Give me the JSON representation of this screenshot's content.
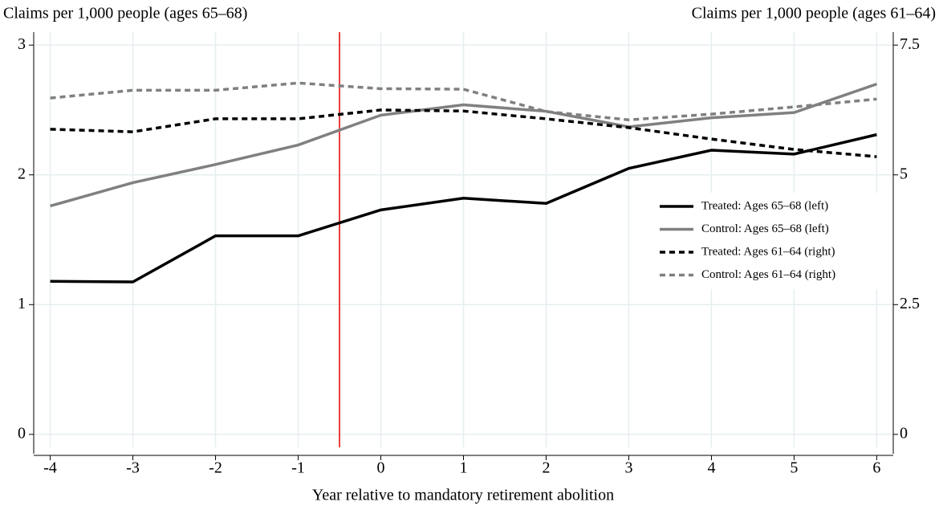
{
  "chart_data": {
    "type": "line",
    "y_label": "Claims per 1,000 people (ages 65–68)",
    "y2_label": "Claims per 1,000 people (ages 61–64)",
    "x_label": "Year relative to mandatory retirement abolition",
    "x": [
      -4,
      -3,
      -2,
      -1,
      0,
      1,
      2,
      3,
      4,
      5,
      6
    ],
    "series": [
      {
        "name": "Treated: Ages 65–68 (left)",
        "color": "#000000",
        "dash": false,
        "axis": "y",
        "values": [
          1.18,
          1.175,
          1.53,
          1.53,
          1.73,
          1.82,
          1.78,
          2.05,
          2.19,
          2.16,
          2.31
        ]
      },
      {
        "name": "Control: Ages 65–68 (left)",
        "color": "#808080",
        "dash": false,
        "axis": "y",
        "values": [
          1.76,
          1.94,
          2.08,
          2.23,
          2.46,
          2.54,
          2.49,
          2.37,
          2.44,
          2.48,
          2.7
        ]
      },
      {
        "name": "Treated: Ages 61–64 (right)",
        "color": "#000000",
        "dash": true,
        "axis": "y2",
        "values": [
          5.88,
          5.83,
          6.08,
          6.08,
          6.25,
          6.23,
          6.08,
          5.91,
          5.69,
          5.49,
          5.35
        ]
      },
      {
        "name": "Control: Ages 61–64 (right)",
        "color": "#808080",
        "dash": true,
        "axis": "y2",
        "values": [
          6.48,
          6.63,
          6.63,
          6.77,
          6.66,
          6.65,
          6.22,
          6.06,
          6.17,
          6.31,
          6.46
        ]
      }
    ],
    "xlim": [
      -4.2,
      6.2
    ],
    "xticks": [
      -4,
      -3,
      -2,
      -1,
      0,
      1,
      2,
      3,
      4,
      5,
      6
    ],
    "ylim": [
      -0.1,
      3.1
    ],
    "yticks": [
      0,
      1,
      2,
      3
    ],
    "y2lim": [
      -0.25,
      7.75
    ],
    "y2ticks": [
      0,
      2.5,
      5,
      7.5
    ],
    "vline": {
      "x": -0.5,
      "color": "#e00000"
    },
    "grid": true,
    "legend": "right"
  }
}
